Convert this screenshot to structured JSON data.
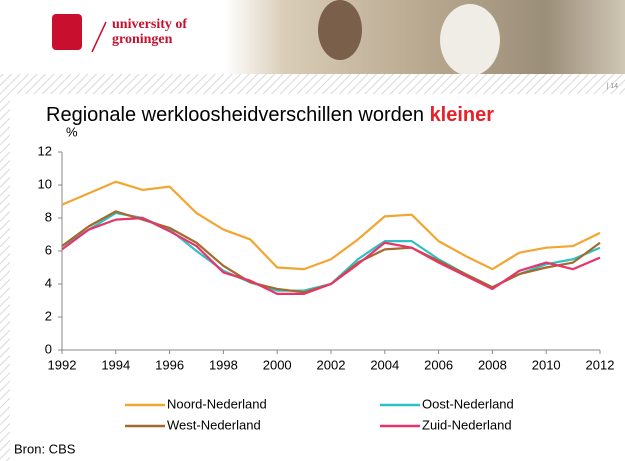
{
  "header": {
    "logo_line1": "university of",
    "logo_line2": "groningen",
    "page_number": "| 14"
  },
  "chart_data": {
    "type": "line",
    "title": "Regionale werkloosheidverschillen worden",
    "title_emphasis": "kleiner",
    "y_label": "%",
    "x": [
      1992,
      1993,
      1994,
      1995,
      1996,
      1997,
      1998,
      1999,
      2000,
      2001,
      2002,
      2003,
      2004,
      2005,
      2006,
      2007,
      2008,
      2009,
      2010,
      2011,
      2012
    ],
    "xlim": [
      1992,
      2012
    ],
    "xticks": [
      1992,
      1994,
      1996,
      1998,
      2000,
      2002,
      2004,
      2006,
      2008,
      2010,
      2012
    ],
    "ylim": [
      0,
      12
    ],
    "yticks": [
      0,
      2,
      4,
      6,
      8,
      10,
      12
    ],
    "grid": false,
    "legend_position": "bottom",
    "series": [
      {
        "name": "Noord-Nederland",
        "color": "#f2a531",
        "values": [
          8.8,
          9.5,
          10.2,
          9.7,
          9.9,
          8.3,
          7.3,
          6.7,
          5.0,
          4.9,
          5.5,
          6.7,
          8.1,
          8.2,
          6.6,
          5.7,
          4.9,
          5.9,
          6.2,
          6.3,
          7.1
        ]
      },
      {
        "name": "Oost-Nederland",
        "color": "#2fc0c4",
        "values": [
          6.3,
          7.3,
          8.3,
          8.0,
          7.3,
          6.0,
          4.8,
          4.1,
          3.6,
          3.6,
          4.0,
          5.5,
          6.6,
          6.6,
          5.5,
          4.6,
          3.8,
          4.6,
          5.2,
          5.5,
          6.2
        ]
      },
      {
        "name": "West-Nederland",
        "color": "#a4692c",
        "values": [
          6.3,
          7.5,
          8.4,
          7.9,
          7.4,
          6.5,
          5.1,
          4.1,
          3.7,
          3.5,
          4.0,
          5.3,
          6.1,
          6.2,
          5.4,
          4.6,
          3.8,
          4.6,
          5.0,
          5.3,
          6.5
        ]
      },
      {
        "name": "Zuid-Nederland",
        "color": "#e8336b",
        "values": [
          6.1,
          7.3,
          7.9,
          8.0,
          7.2,
          6.3,
          4.7,
          4.2,
          3.4,
          3.4,
          4.0,
          5.2,
          6.5,
          6.2,
          5.3,
          4.5,
          3.7,
          4.8,
          5.3,
          4.9,
          5.6
        ]
      }
    ],
    "source": "Bron: CBS"
  }
}
